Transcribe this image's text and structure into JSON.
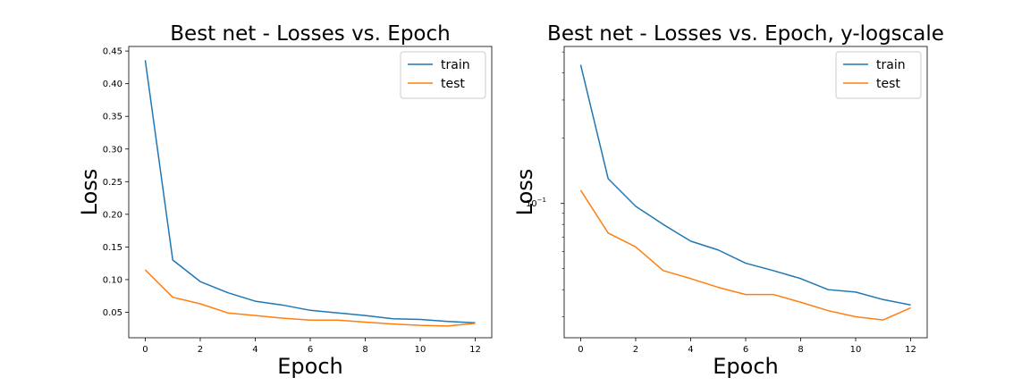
{
  "chart_data": [
    {
      "type": "line",
      "title": "Best net - Losses vs. Epoch",
      "xlabel": "Epoch",
      "ylabel": "Loss",
      "yscale": "linear",
      "xlim": [
        -0.6,
        12.6
      ],
      "ylim": [
        0.011,
        0.457
      ],
      "xticks": [
        0,
        2,
        4,
        6,
        8,
        10,
        12
      ],
      "yticks": [
        0.05,
        0.1,
        0.15,
        0.2,
        0.25,
        0.3,
        0.35,
        0.4,
        0.45
      ],
      "ytick_labels": [
        "0.05",
        "0.10",
        "0.15",
        "0.20",
        "0.25",
        "0.30",
        "0.35",
        "0.40",
        "0.45"
      ],
      "legend_position": "upper right",
      "grid": false,
      "x": [
        0,
        1,
        2,
        3,
        4,
        5,
        6,
        7,
        8,
        9,
        10,
        11,
        12
      ],
      "series": [
        {
          "name": "train",
          "color": "#1f77b4",
          "values": [
            0.436,
            0.13,
            0.097,
            0.08,
            0.067,
            0.061,
            0.053,
            0.049,
            0.045,
            0.04,
            0.039,
            0.036,
            0.034
          ]
        },
        {
          "name": "test",
          "color": "#ff7f0e",
          "values": [
            0.115,
            0.073,
            0.063,
            0.049,
            0.045,
            0.041,
            0.038,
            0.038,
            0.035,
            0.032,
            0.03,
            0.029,
            0.033
          ]
        }
      ]
    },
    {
      "type": "line",
      "title": "Best net - Losses vs. Epoch, y-logscale",
      "xlabel": "Epoch",
      "ylabel": "Loss",
      "yscale": "log",
      "xlim": [
        -0.6,
        12.6
      ],
      "ylim": [
        0.024,
        0.53
      ],
      "xticks": [
        0,
        2,
        4,
        6,
        8,
        10,
        12
      ],
      "yticks": [
        0.1
      ],
      "ytick_labels": [
        "10"
      ],
      "ytick_superscripts": [
        "−1"
      ],
      "legend_position": "upper right",
      "grid": false,
      "x": [
        0,
        1,
        2,
        3,
        4,
        5,
        6,
        7,
        8,
        9,
        10,
        11,
        12
      ],
      "series": [
        {
          "name": "train",
          "color": "#1f77b4",
          "values": [
            0.436,
            0.13,
            0.097,
            0.08,
            0.067,
            0.061,
            0.053,
            0.049,
            0.045,
            0.04,
            0.039,
            0.036,
            0.034
          ]
        },
        {
          "name": "test",
          "color": "#ff7f0e",
          "values": [
            0.115,
            0.073,
            0.063,
            0.049,
            0.045,
            0.041,
            0.038,
            0.038,
            0.035,
            0.032,
            0.03,
            0.029,
            0.033
          ]
        }
      ]
    }
  ]
}
